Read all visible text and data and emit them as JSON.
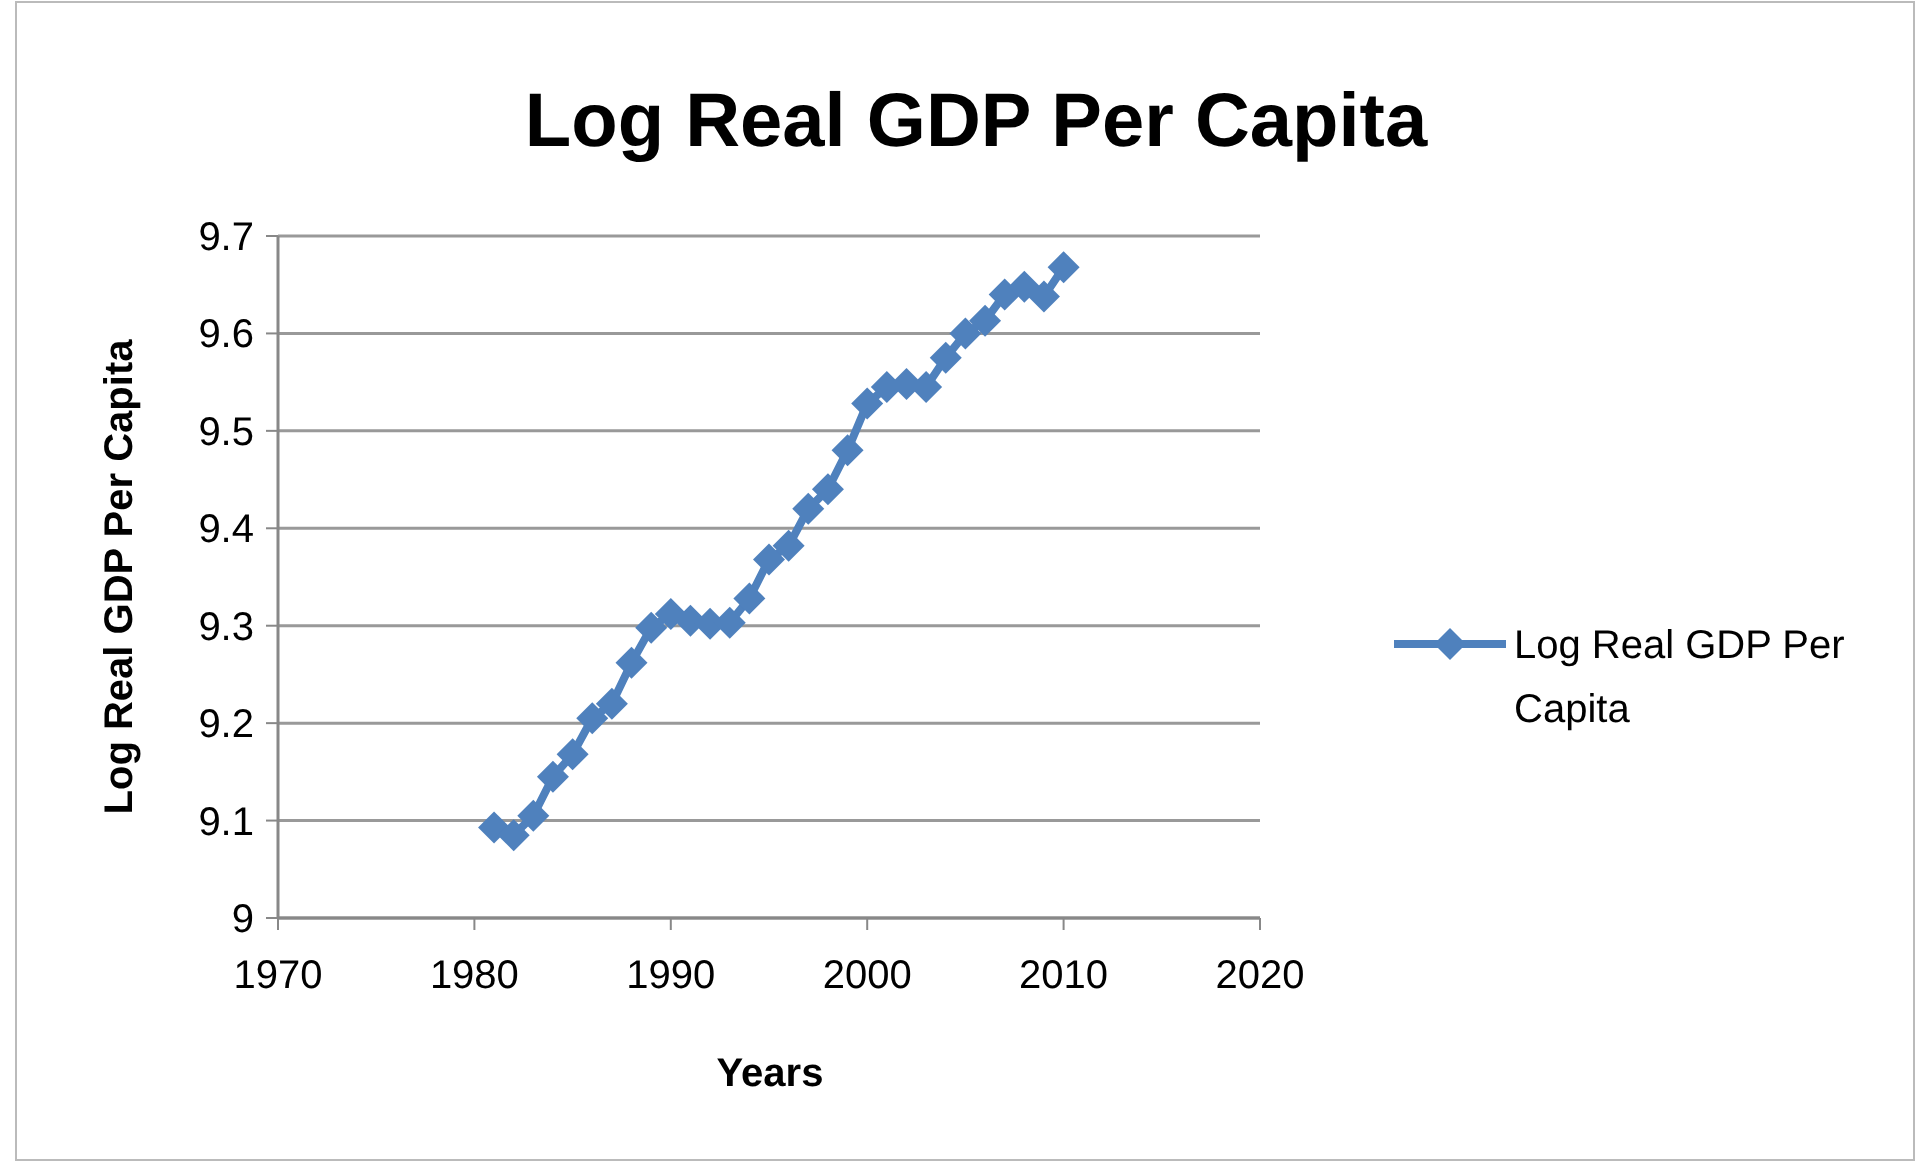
{
  "chart_data": {
    "type": "line",
    "title": "Log Real GDP Per Capita",
    "xlabel": "Years",
    "ylabel": "Log Real GDP Per Capita",
    "x": [
      1981,
      1982,
      1983,
      1984,
      1985,
      1986,
      1987,
      1988,
      1989,
      1990,
      1991,
      1992,
      1993,
      1994,
      1995,
      1996,
      1997,
      1998,
      1999,
      2000,
      2001,
      2002,
      2003,
      2004,
      2005,
      2006,
      2007,
      2008,
      2009,
      2010
    ],
    "series": [
      {
        "name": "Log Real GDP Per Capita",
        "color": "#4f81bd",
        "values": [
          9.093,
          9.085,
          9.105,
          9.145,
          9.168,
          9.205,
          9.22,
          9.262,
          9.298,
          9.312,
          9.305,
          9.302,
          9.303,
          9.328,
          9.368,
          9.382,
          9.42,
          9.44,
          9.48,
          9.528,
          9.545,
          9.548,
          9.545,
          9.575,
          9.6,
          9.613,
          9.64,
          9.648,
          9.638,
          9.668
        ]
      }
    ],
    "xlim": [
      1970,
      2020
    ],
    "xticks": [
      1970,
      1980,
      1990,
      2000,
      2010,
      2020
    ],
    "ylim": [
      9,
      9.7
    ],
    "yticks": [
      9,
      {
        "value": 9.1,
        "label": "9.1"
      },
      {
        "value": 9.2,
        "label": "9.2"
      },
      {
        "value": 9.3,
        "label": "9.3"
      },
      {
        "value": 9.4,
        "label": "9.4"
      },
      {
        "value": 9.5,
        "label": "9.5"
      },
      {
        "value": 9.6,
        "label": "9.6"
      },
      {
        "value": 9.7,
        "label": "9.7"
      }
    ],
    "grid": "y",
    "legend": "right",
    "marker": "diamond",
    "line_style": "solid"
  }
}
